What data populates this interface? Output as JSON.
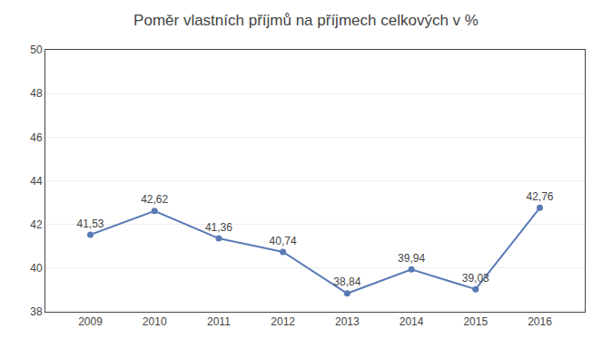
{
  "chart_data": {
    "type": "line",
    "title": "Poměr vlastních příjmů na příjmech celkových v %",
    "x": [
      2009,
      2010,
      2011,
      2012,
      2013,
      2014,
      2015,
      2016
    ],
    "values": [
      41.53,
      42.62,
      41.36,
      40.74,
      38.84,
      39.94,
      39.03,
      42.76
    ],
    "value_labels": [
      "41,53",
      "42,62",
      "41,36",
      "40,74",
      "38,84",
      "39,94",
      "39,03",
      "42,76"
    ],
    "data_labels": true,
    "color": "#5a7ab5",
    "marker": "circle",
    "xlim": [
      2008.3,
      2016.7
    ],
    "xticks": [
      2009,
      2010,
      2011,
      2012,
      2013,
      2014,
      2015,
      2016
    ],
    "ylim": [
      38,
      50
    ],
    "yticks": [
      38,
      40,
      42,
      44,
      46,
      48,
      50
    ],
    "grid": true
  }
}
